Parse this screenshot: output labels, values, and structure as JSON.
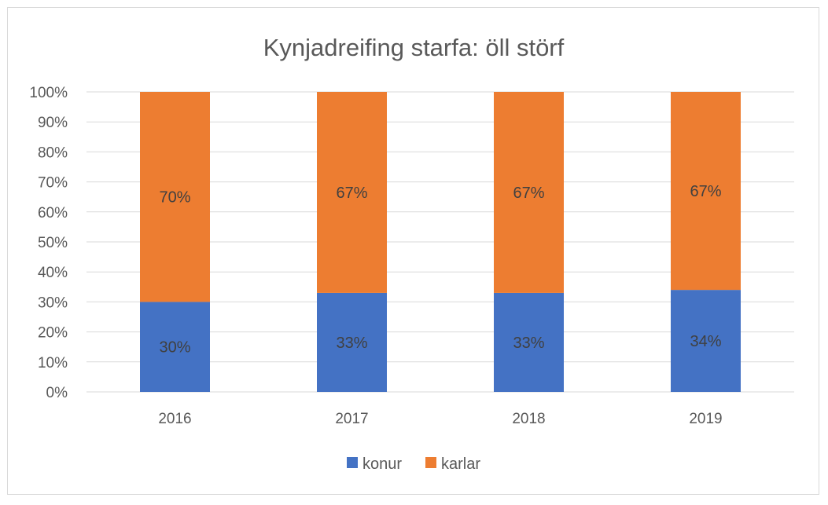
{
  "chart_data": {
    "type": "bar",
    "stacked": true,
    "title": "Kynjadreifing starfa: öll störf",
    "categories": [
      "2016",
      "2017",
      "2018",
      "2019"
    ],
    "series": [
      {
        "name": "konur",
        "color": "#4472c4",
        "values": [
          30,
          33,
          33,
          34
        ],
        "labels": [
          "30%",
          "33%",
          "33%",
          "34%"
        ]
      },
      {
        "name": "karlar",
        "color": "#ed7d31",
        "values": [
          70,
          67,
          67,
          67
        ],
        "labels": [
          "70%",
          "67%",
          "67%",
          "67%"
        ]
      }
    ],
    "ylim": [
      0,
      100
    ],
    "yticks": [
      "0%",
      "10%",
      "20%",
      "30%",
      "40%",
      "50%",
      "60%",
      "70%",
      "80%",
      "90%",
      "100%"
    ],
    "grid": true,
    "legend_position": "bottom"
  }
}
